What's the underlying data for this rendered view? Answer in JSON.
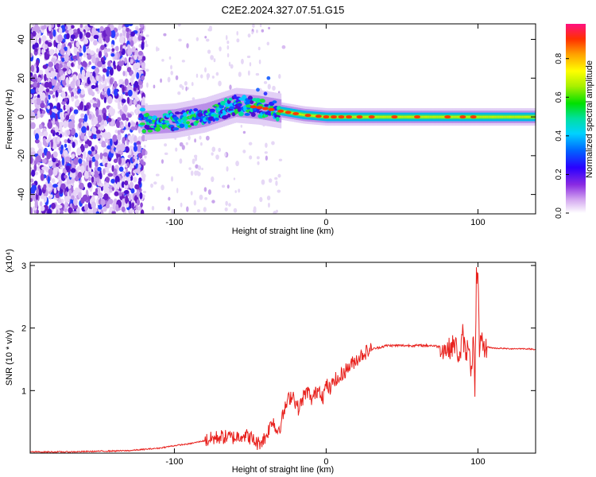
{
  "title": "C2E2.2024.327.07.51.G15",
  "chart_data": [
    {
      "type": "heatmap",
      "xlabel": "Height of straight line (km)",
      "ylabel": "Frequency (Hz)",
      "xlim": [
        -195,
        138
      ],
      "ylim": [
        -50,
        48
      ],
      "xticks": [
        -100,
        0,
        100
      ],
      "yticks": [
        -40,
        -20,
        0,
        20,
        40
      ],
      "colorbar": {
        "label": "Normalized spectral amplitude",
        "ticks": [
          0.0,
          0.2,
          0.4,
          0.6,
          0.8
        ],
        "range": [
          0,
          0.98
        ]
      },
      "ridge": [
        {
          "x": -120,
          "y": -3
        },
        {
          "x": -100,
          "y": -2
        },
        {
          "x": -80,
          "y": 1
        },
        {
          "x": -60,
          "y": 6
        },
        {
          "x": -45,
          "y": 5
        },
        {
          "x": -30,
          "y": 3
        },
        {
          "x": -15,
          "y": 1
        },
        {
          "x": 0,
          "y": 0
        },
        {
          "x": 50,
          "y": 0
        },
        {
          "x": 100,
          "y": 0
        },
        {
          "x": 138,
          "y": 0
        }
      ]
    },
    {
      "type": "line",
      "xlabel": "Height of straight line (km)",
      "ylabel": "SNR (10 * v/v)",
      "y_multiplier": "(x10⁴)",
      "xlim": [
        -195,
        138
      ],
      "ylim": [
        0,
        3.05
      ],
      "xticks": [
        -100,
        0,
        100
      ],
      "yticks": [
        1,
        2,
        3
      ],
      "series": [
        {
          "color": "#e8211d",
          "x": [
            -195,
            -170,
            -150,
            -130,
            -120,
            -110,
            -100,
            -90,
            -80,
            -70,
            -60,
            -55,
            -50,
            -45,
            -40,
            -35,
            -33,
            -30,
            -28,
            -25,
            -22,
            -20,
            -18,
            -15,
            -12,
            -10,
            -7,
            -5,
            -2,
            0,
            3,
            5,
            8,
            10,
            15,
            20,
            25,
            30,
            40,
            50,
            60,
            70,
            75,
            80,
            85,
            88,
            90,
            92,
            94,
            96,
            97,
            98,
            99,
            100,
            101,
            102,
            104,
            106,
            110,
            120,
            130,
            138
          ],
          "y": [
            0.02,
            0.02,
            0.03,
            0.04,
            0.06,
            0.08,
            0.12,
            0.15,
            0.2,
            0.26,
            0.25,
            0.3,
            0.25,
            0.15,
            0.25,
            0.55,
            0.35,
            0.45,
            0.65,
            0.85,
            0.95,
            0.8,
            0.7,
            0.9,
            1.0,
            0.85,
            0.95,
            1.05,
            0.9,
            1.1,
            1.0,
            1.2,
            1.15,
            1.25,
            1.38,
            1.5,
            1.6,
            1.66,
            1.72,
            1.72,
            1.72,
            1.72,
            1.7,
            1.65,
            1.75,
            1.5,
            1.9,
            1.55,
            1.8,
            1.2,
            2.0,
            0.8,
            2.8,
            3.0,
            1.5,
            1.8,
            1.65,
            1.7,
            1.68,
            1.67,
            1.67,
            1.66
          ]
        }
      ]
    }
  ]
}
